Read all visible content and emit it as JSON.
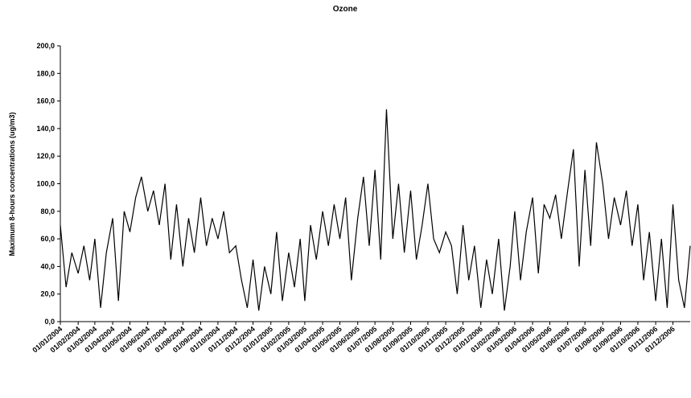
{
  "chart_data": {
    "type": "line",
    "title": "Ozone",
    "y_label": "Maximum 8-hours concentrations (ug/m3)",
    "x": [
      "01/01/2004",
      "11/01/2004",
      "21/01/2004",
      "01/02/2004",
      "11/02/2004",
      "21/02/2004",
      "01/03/2004",
      "11/03/2004",
      "21/03/2004",
      "01/04/2004",
      "11/04/2004",
      "21/04/2004",
      "01/05/2004",
      "11/05/2004",
      "21/05/2004",
      "01/06/2004",
      "11/06/2004",
      "21/06/2004",
      "01/07/2004",
      "11/07/2004",
      "21/07/2004",
      "01/08/2004",
      "11/08/2004",
      "21/08/2004",
      "01/09/2004",
      "11/09/2004",
      "21/09/2004",
      "01/10/2004",
      "11/10/2004",
      "21/10/2004",
      "01/11/2004",
      "11/11/2004",
      "21/11/2004",
      "01/12/2004",
      "11/12/2004",
      "21/12/2004",
      "01/01/2005",
      "11/01/2005",
      "21/01/2005",
      "01/02/2005",
      "11/02/2005",
      "21/02/2005",
      "01/03/2005",
      "11/03/2005",
      "21/03/2005",
      "01/04/2005",
      "11/04/2005",
      "21/04/2005",
      "01/05/2005",
      "11/05/2005",
      "21/05/2005",
      "01/06/2005",
      "11/06/2005",
      "21/06/2005",
      "01/07/2005",
      "11/07/2005",
      "21/07/2005",
      "01/08/2005",
      "11/08/2005",
      "21/08/2005",
      "01/09/2005",
      "11/09/2005",
      "21/09/2005",
      "01/10/2005",
      "11/10/2005",
      "21/10/2005",
      "01/11/2005",
      "11/11/2005",
      "21/11/2005",
      "01/12/2005",
      "11/12/2005",
      "21/12/2005",
      "01/01/2006",
      "11/01/2006",
      "21/01/2006",
      "01/02/2006",
      "11/02/2006",
      "21/02/2006",
      "01/03/2006",
      "11/03/2006",
      "21/03/2006",
      "01/04/2006",
      "11/04/2006",
      "21/04/2006",
      "01/05/2006",
      "11/05/2006",
      "21/05/2006",
      "01/06/2006",
      "11/06/2006",
      "21/06/2006",
      "01/07/2006",
      "11/07/2006",
      "21/07/2006",
      "01/08/2006",
      "11/08/2006",
      "21/08/2006",
      "01/09/2006",
      "11/09/2006",
      "21/09/2006",
      "01/10/2006",
      "11/10/2006",
      "21/10/2006",
      "01/11/2006",
      "11/11/2006",
      "21/11/2006",
      "01/12/2006",
      "11/12/2006",
      "21/12/2006",
      "31/12/2006"
    ],
    "series": [
      {
        "name": "Ozone",
        "color": "#000000",
        "values": [
          70,
          25,
          50,
          35,
          55,
          30,
          60,
          10,
          50,
          75,
          15,
          80,
          65,
          90,
          105,
          80,
          95,
          70,
          100,
          45,
          85,
          40,
          75,
          50,
          90,
          55,
          75,
          60,
          80,
          50,
          55,
          30,
          10,
          45,
          8,
          40,
          20,
          65,
          15,
          50,
          25,
          60,
          15,
          70,
          45,
          80,
          55,
          85,
          60,
          90,
          30,
          75,
          105,
          55,
          110,
          45,
          154,
          60,
          100,
          50,
          95,
          45,
          70,
          100,
          60,
          50,
          65,
          55,
          20,
          70,
          30,
          55,
          10,
          45,
          20,
          60,
          8,
          40,
          80,
          30,
          65,
          90,
          35,
          85,
          75,
          92,
          60,
          95,
          125,
          40,
          110,
          55,
          130,
          100,
          60,
          90,
          70,
          95,
          55,
          85,
          30,
          65,
          15,
          60,
          10,
          85,
          30,
          10,
          55
        ]
      }
    ],
    "xlim": [
      "01/01/2004",
      "31/12/2006"
    ],
    "xticks": [
      "01/01/2004",
      "01/02/2004",
      "01/03/2004",
      "01/04/2004",
      "01/05/2004",
      "01/06/2004",
      "01/07/2004",
      "01/08/2004",
      "01/09/2004",
      "01/10/2004",
      "01/11/2004",
      "01/12/2004",
      "01/01/2005",
      "01/02/2005",
      "01/03/2005",
      "01/04/2005",
      "01/05/2005",
      "01/06/2005",
      "01/07/2005",
      "01/08/2005",
      "01/09/2005",
      "01/10/2005",
      "01/11/2005",
      "01/12/2005",
      "01/01/2006",
      "01/02/2006",
      "01/03/2006",
      "01/04/2006",
      "01/05/2006",
      "01/06/2006",
      "01/07/2006",
      "01/08/2006",
      "01/09/2006",
      "01/10/2006",
      "01/11/2006",
      "01/12/2006"
    ],
    "ylim": [
      0,
      200
    ],
    "yticks": [
      {
        "value": 0,
        "label": "0,0"
      },
      {
        "value": 20,
        "label": "20,0"
      },
      {
        "value": 40,
        "label": "40,0"
      },
      {
        "value": 60,
        "label": "60,0"
      },
      {
        "value": 80,
        "label": "80,0"
      },
      {
        "value": 100,
        "label": "100,0"
      },
      {
        "value": 120,
        "label": "120,0"
      },
      {
        "value": 140,
        "label": "140,0"
      },
      {
        "value": 160,
        "label": "160,0"
      },
      {
        "value": 180,
        "label": "180,0"
      },
      {
        "value": 200,
        "label": "200,0"
      }
    ],
    "grid": false
  }
}
